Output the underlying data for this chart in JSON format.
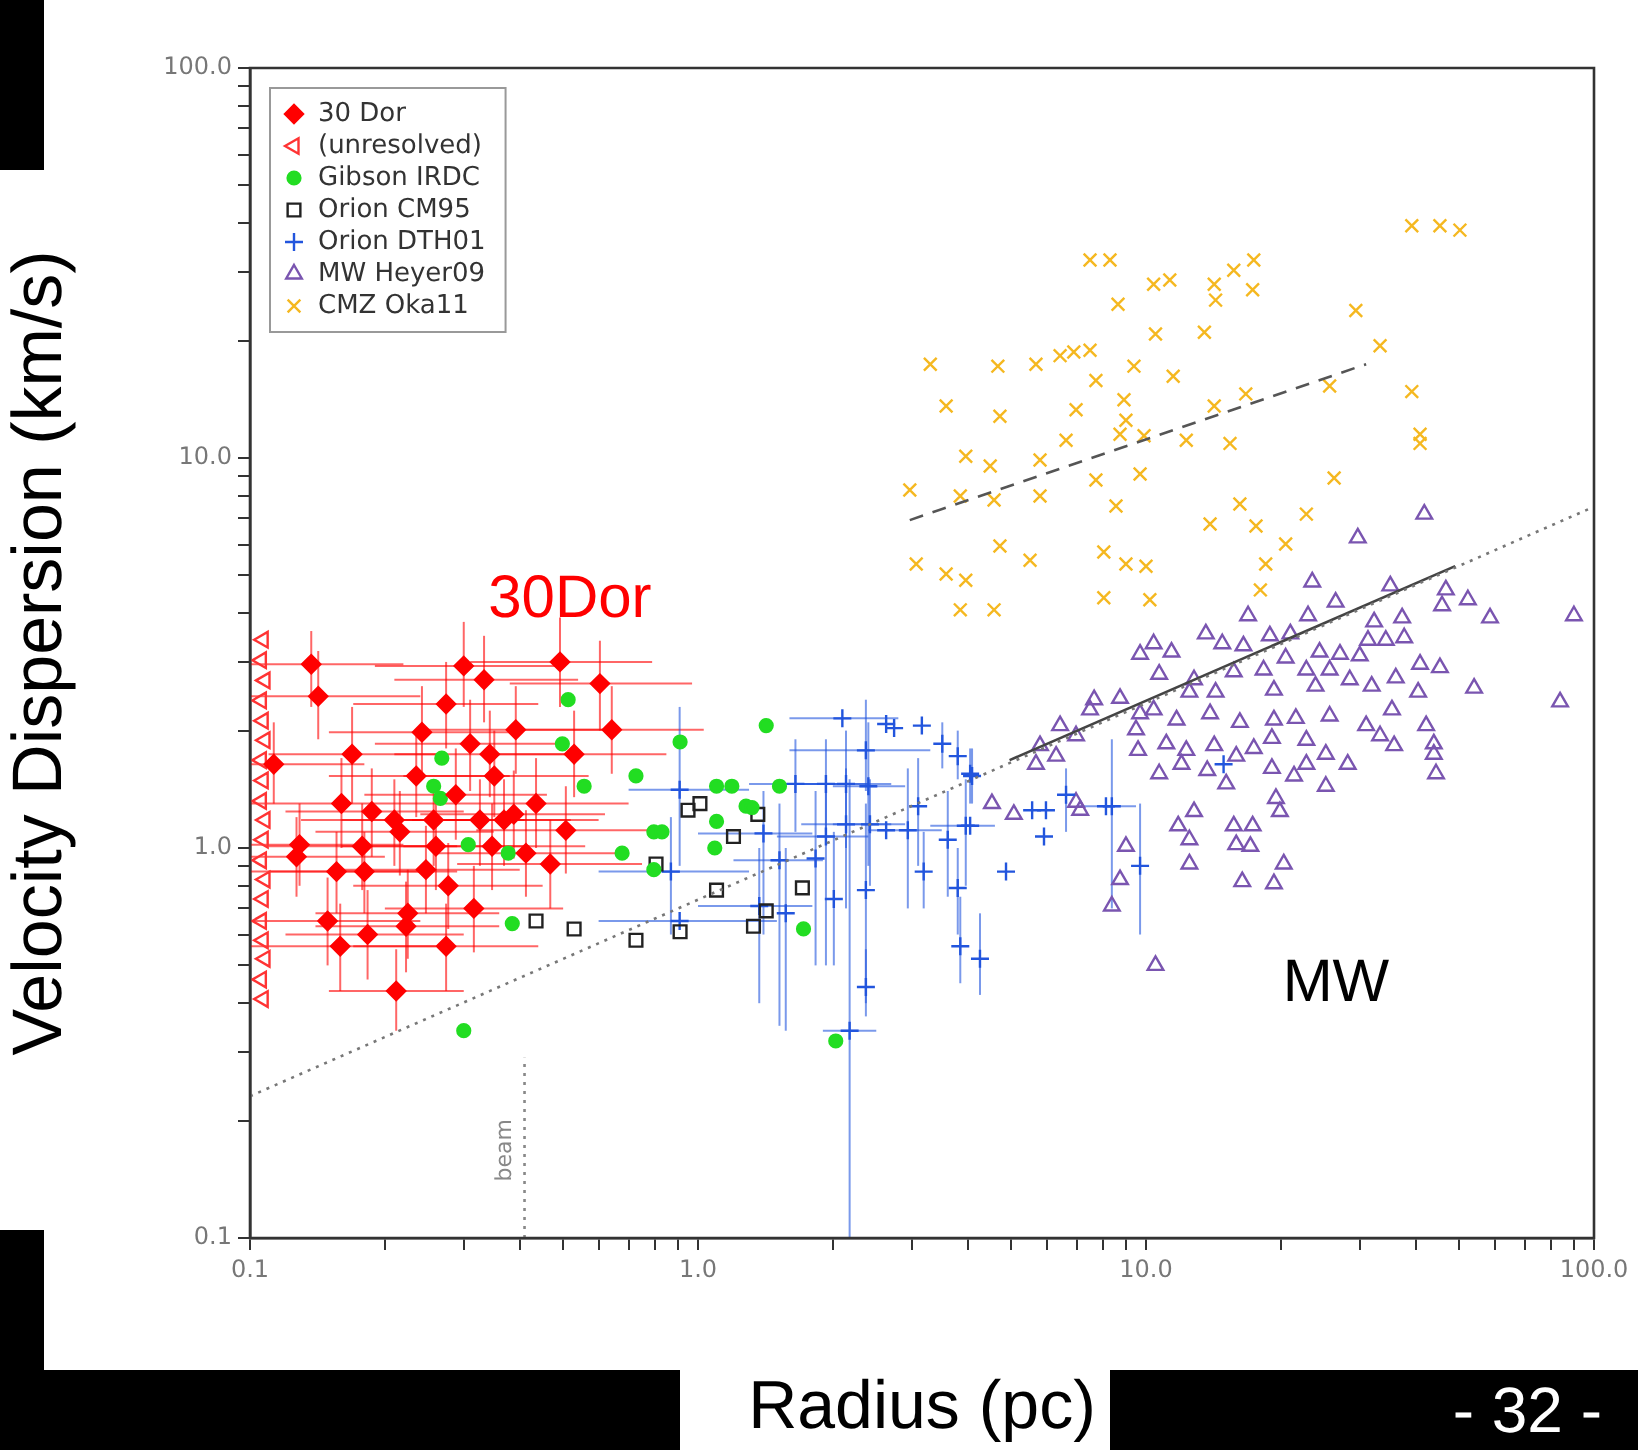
{
  "chart_data": {
    "type": "scatter",
    "xlabel": "Radius (pc)",
    "ylabel": "Velocity Dispersion (km/s)",
    "log": "xy",
    "grid": false,
    "legend": "top left",
    "xlim": [
      0.1,
      100
    ],
    "ylim": [
      0.1,
      100
    ],
    "xticks": [
      0.1,
      {
        "value": 0.2,
        "label": null
      },
      {
        "value": 0.3,
        "label": null
      },
      {
        "value": 0.4,
        "label": null
      },
      {
        "value": 0.5,
        "label": null
      },
      {
        "value": 0.6,
        "label": null
      },
      {
        "value": 0.7,
        "label": null
      },
      {
        "value": 0.8,
        "label": null
      },
      {
        "value": 0.9,
        "label": null
      },
      {
        "value": 1,
        "label": "1.0"
      },
      {
        "value": 2,
        "label": null
      },
      {
        "value": 3,
        "label": null
      },
      {
        "value": 4,
        "label": null
      },
      {
        "value": 5,
        "label": null
      },
      {
        "value": 6,
        "label": null
      },
      {
        "value": 7,
        "label": null
      },
      {
        "value": 8,
        "label": null
      },
      {
        "value": 9,
        "label": null
      },
      {
        "value": 10,
        "label": "10.0"
      },
      {
        "value": 20,
        "label": null
      },
      {
        "value": 30,
        "label": null
      },
      {
        "value": 40,
        "label": null
      },
      {
        "value": 50,
        "label": null
      },
      {
        "value": 60,
        "label": null
      },
      {
        "value": 70,
        "label": null
      },
      {
        "value": 80,
        "label": null
      },
      {
        "value": 90,
        "label": null
      },
      {
        "value": 100,
        "label": "100.0"
      }
    ],
    "yticks": [
      0.1,
      {
        "value": 0.2,
        "label": null
      },
      {
        "value": 0.3,
        "label": null
      },
      {
        "value": 0.4,
        "label": null
      },
      {
        "value": 0.5,
        "label": null
      },
      {
        "value": 0.6,
        "label": null
      },
      {
        "value": 0.7,
        "label": null
      },
      {
        "value": 0.8,
        "label": null
      },
      {
        "value": 0.9,
        "label": null
      },
      {
        "value": 1,
        "label": "1.0"
      },
      {
        "value": 2,
        "label": null
      },
      {
        "value": 3,
        "label": null
      },
      {
        "value": 4,
        "label": null
      },
      {
        "value": 5,
        "label": null
      },
      {
        "value": 6,
        "label": null
      },
      {
        "value": 7,
        "label": null
      },
      {
        "value": 8,
        "label": null
      },
      {
        "value": 9,
        "label": null
      },
      {
        "value": 10,
        "label": "10.0"
      },
      {
        "value": 20,
        "label": null
      },
      {
        "value": 30,
        "label": null
      },
      {
        "value": 40,
        "label": null
      },
      {
        "value": 50,
        "label": null
      },
      {
        "value": 60,
        "label": null
      },
      {
        "value": 70,
        "label": null
      },
      {
        "value": 80,
        "label": null
      },
      {
        "value": 90,
        "label": null
      },
      {
        "value": 100,
        "label": "100.0"
      }
    ],
    "annotations": [
      "30Dor",
      "MW",
      "beam",
      "- 32 -"
    ],
    "series": [
      {
        "type": "line",
        "color": "#777777",
        "line_style": "dotted",
        "marker": "none",
        "x": [
          0.1,
          100
        ],
        "values": [
          0.231,
          7.5
        ]
      },
      {
        "type": "line",
        "color": "#444444",
        "line_style": "solid",
        "marker": "none",
        "x": [
          4.96,
          49
        ],
        "values": [
          1.68,
          5.28
        ]
      },
      {
        "type": "line",
        "color": "#555555",
        "line_style": "dashed",
        "marker": "none",
        "x": [
          2.97,
          31
        ],
        "values": [
          6.93,
          17.4
        ]
      },
      {
        "type": "line",
        "color": "#888888",
        "line_style": "dotted",
        "marker": "none",
        "x": [
          0.41,
          0.41
        ],
        "values": [
          0.1,
          0.29
        ]
      },
      {
        "name": "30 Dor",
        "marker": "diamond",
        "color": "#ff0000",
        "x": [
          0.137,
          0.142,
          0.113,
          0.169,
          0.129,
          0.127,
          0.16,
          0.187,
          0.21,
          0.216,
          0.178,
          0.156,
          0.18,
          0.149,
          0.159,
          0.183,
          0.212,
          0.225,
          0.223,
          0.274,
          0.277,
          0.316,
          0.247,
          0.26,
          0.242,
          0.235,
          0.274,
          0.3,
          0.333,
          0.31,
          0.343,
          0.392,
          0.351,
          0.288,
          0.257,
          0.326,
          0.369,
          0.347,
          0.388,
          0.413,
          0.435,
          0.468,
          0.507,
          0.529,
          0.492,
          0.604,
          0.642
        ],
        "values": [
          2.96,
          2.45,
          1.64,
          1.74,
          1.02,
          0.95,
          1.3,
          1.24,
          1.18,
          1.1,
          1.01,
          0.87,
          0.87,
          0.65,
          0.56,
          0.6,
          0.43,
          0.68,
          0.63,
          0.56,
          0.8,
          0.7,
          0.88,
          1.01,
          1.98,
          1.53,
          2.34,
          2.93,
          2.7,
          1.85,
          1.74,
          2.01,
          1.53,
          1.37,
          1.18,
          1.18,
          1.18,
          1.01,
          1.22,
          0.97,
          1.3,
          0.91,
          1.11,
          1.74,
          3.0,
          2.64,
          2.01
        ],
        "xerrors": [
          [
            0.1,
            0.22
          ],
          [
            0.1,
            0.24
          ],
          [
            0.1,
            0.18
          ],
          [
            0.11,
            0.27
          ],
          [
            0.1,
            0.22
          ],
          [
            0.1,
            0.2
          ],
          [
            0.1,
            0.26
          ],
          [
            0.12,
            0.3
          ],
          [
            0.13,
            0.34
          ],
          [
            0.14,
            0.35
          ],
          [
            0.11,
            0.29
          ],
          [
            0.1,
            0.25
          ],
          [
            0.11,
            0.29
          ],
          [
            0.1,
            0.24
          ],
          [
            0.1,
            0.26
          ],
          [
            0.12,
            0.3
          ],
          [
            0.15,
            0.3
          ],
          [
            0.14,
            0.36
          ],
          [
            0.14,
            0.36
          ],
          [
            0.17,
            0.44
          ],
          [
            0.17,
            0.45
          ],
          [
            0.2,
            0.5
          ],
          [
            0.15,
            0.4
          ],
          [
            0.16,
            0.42
          ],
          [
            0.15,
            0.39
          ],
          [
            0.15,
            0.38
          ],
          [
            0.17,
            0.44
          ],
          [
            0.19,
            0.48
          ],
          [
            0.21,
            0.54
          ],
          [
            0.19,
            0.5
          ],
          [
            0.21,
            0.55
          ],
          [
            0.24,
            0.63
          ],
          [
            0.22,
            0.57
          ],
          [
            0.18,
            0.46
          ],
          [
            0.16,
            0.41
          ],
          [
            0.2,
            0.52
          ],
          [
            0.23,
            0.6
          ],
          [
            0.22,
            0.56
          ],
          [
            0.24,
            0.62
          ],
          [
            0.26,
            0.66
          ],
          [
            0.27,
            0.7
          ],
          [
            0.29,
            0.75
          ],
          [
            0.32,
            0.82
          ],
          [
            0.33,
            0.85
          ],
          [
            0.31,
            0.79
          ],
          [
            0.38,
            0.97
          ],
          [
            0.4,
            1.03
          ]
        ],
        "errors": [
          [
            2.3,
            3.6
          ],
          [
            1.9,
            3.2
          ],
          [
            1.3,
            2.1
          ],
          [
            1.3,
            2.3
          ],
          [
            0.8,
            1.3
          ],
          [
            0.75,
            1.2
          ],
          [
            1.0,
            1.7
          ],
          [
            0.95,
            1.6
          ],
          [
            0.9,
            1.5
          ],
          [
            0.85,
            1.4
          ],
          [
            0.78,
            1.3
          ],
          [
            0.68,
            1.1
          ],
          [
            0.68,
            1.1
          ],
          [
            0.5,
            0.84
          ],
          [
            0.43,
            0.72
          ],
          [
            0.46,
            0.78
          ],
          [
            0.34,
            0.55
          ],
          [
            0.52,
            0.88
          ],
          [
            0.48,
            0.82
          ],
          [
            0.43,
            0.72
          ],
          [
            0.62,
            1.03
          ],
          [
            0.54,
            0.9
          ],
          [
            0.68,
            1.14
          ],
          [
            0.78,
            1.3
          ],
          [
            1.5,
            2.6
          ],
          [
            1.2,
            2.0
          ],
          [
            1.8,
            3.0
          ],
          [
            2.3,
            3.8
          ],
          [
            2.1,
            3.5
          ],
          [
            1.4,
            2.4
          ],
          [
            1.35,
            2.25
          ],
          [
            1.55,
            2.6
          ],
          [
            1.2,
            2.0
          ],
          [
            1.05,
            1.8
          ],
          [
            0.9,
            1.5
          ],
          [
            0.9,
            1.5
          ],
          [
            0.9,
            1.5
          ],
          [
            0.78,
            1.3
          ],
          [
            0.94,
            1.58
          ],
          [
            0.75,
            1.25
          ],
          [
            1.0,
            1.7
          ],
          [
            0.7,
            1.18
          ],
          [
            0.86,
            1.44
          ],
          [
            1.35,
            2.25
          ],
          [
            2.3,
            3.9
          ],
          [
            2.0,
            3.4
          ],
          [
            1.55,
            2.6
          ]
        ]
      },
      {
        "name": "(unresolved)",
        "marker": "triangle",
        "color": "#ff3333",
        "x": [
          0.107,
          0.106,
          0.108,
          0.106,
          0.107,
          0.108,
          0.106,
          0.107,
          0.106,
          0.108,
          0.107,
          0.106,
          0.108,
          0.107,
          0.106,
          0.107,
          0.108,
          0.106,
          0.107
        ],
        "values": [
          3.42,
          3.03,
          2.69,
          2.39,
          2.12,
          1.89,
          1.68,
          1.49,
          1.32,
          1.18,
          1.05,
          0.93,
          0.83,
          0.74,
          0.65,
          0.58,
          0.52,
          0.46,
          0.41
        ]
      },
      {
        "name": "Gibson IRDC",
        "marker": "circle",
        "color": "#22dd22",
        "x": [
          0.513,
          0.498,
          0.557,
          0.268,
          0.257,
          0.266,
          0.307,
          0.377,
          0.727,
          0.912,
          0.677,
          0.797,
          0.831,
          0.797,
          0.385,
          0.3,
          1.1,
          1.19,
          1.09,
          1.28,
          1.42,
          1.52,
          1.32,
          1.1,
          1.72,
          2.03
        ],
        "values": [
          2.4,
          1.85,
          1.44,
          1.7,
          1.44,
          1.34,
          1.02,
          0.97,
          1.53,
          1.87,
          0.97,
          1.1,
          1.1,
          0.88,
          0.64,
          0.34,
          1.44,
          1.44,
          1.0,
          1.28,
          2.06,
          1.44,
          1.27,
          1.17,
          0.62,
          0.32
        ]
      },
      {
        "name": "Orion CM95",
        "marker": "square",
        "color": "#222222",
        "x": [
          0.435,
          0.529,
          0.727,
          0.912,
          0.806,
          0.95,
          1.01,
          1.2,
          1.36,
          1.1,
          1.71,
          1.42,
          1.33
        ],
        "values": [
          0.65,
          0.62,
          0.58,
          0.61,
          0.91,
          1.25,
          1.3,
          1.07,
          1.22,
          0.78,
          0.79,
          0.69,
          0.63
        ]
      },
      {
        "name": "Orion DTH01",
        "marker": "cross",
        "color": "#2255dd",
        "x": [
          2.1,
          2.63,
          2.74,
          3.16,
          3.51,
          3.8,
          4.09,
          2.37,
          1.65,
          1.93,
          2.14,
          2.4,
          3.1,
          2.94,
          3.61,
          3.96,
          3.8,
          3.19,
          4.87,
          3.85,
          4.26,
          2.37,
          2.18,
          2.37,
          1.93,
          2.14,
          2.42,
          2.63,
          1.52,
          1.4,
          1.57,
          0.91,
          0.87,
          0.91,
          1.37,
          1.83,
          2.01,
          5.98,
          6.63,
          8.14,
          5.92,
          4.05,
          4.05,
          5.57,
          8.39,
          9.7,
          14.9
        ],
        "values": [
          2.15,
          2.08,
          2.03,
          2.06,
          1.85,
          1.72,
          1.53,
          1.78,
          1.46,
          1.46,
          1.46,
          1.44,
          1.28,
          1.11,
          1.05,
          1.14,
          0.79,
          0.87,
          0.87,
          0.56,
          0.52,
          0.44,
          0.34,
          0.78,
          1.07,
          1.15,
          1.15,
          1.11,
          0.93,
          1.09,
          0.68,
          1.41,
          0.87,
          0.65,
          0.71,
          0.94,
          0.74,
          1.25,
          1.37,
          1.28,
          1.07,
          1.55,
          1.14,
          1.25,
          1.28,
          0.9,
          1.64
        ],
        "xerrors": [
          [
            1.6,
            2.8
          ],
          null,
          null,
          null,
          null,
          null,
          null,
          [
            1.6,
            3.3
          ],
          [
            1.3,
            2.1
          ],
          [
            1.5,
            2.4
          ],
          [
            1.7,
            2.7
          ],
          [
            2.0,
            2.9
          ],
          null,
          [
            2.4,
            3.5
          ],
          null,
          [
            3.3,
            4.6
          ],
          null,
          null,
          null,
          null,
          null,
          null,
          [
            1.9,
            2.5
          ],
          null,
          [
            1.5,
            2.4
          ],
          [
            1.7,
            2.7
          ],
          [
            2.0,
            2.9
          ],
          null,
          [
            1.2,
            1.9
          ],
          [
            1.0,
            1.8
          ],
          null,
          [
            0.7,
            1.3
          ],
          [
            0.6,
            1.3
          ],
          [
            0.6,
            1.5
          ],
          [
            1.0,
            1.8
          ],
          null,
          null,
          null,
          null,
          [
            7.0,
            9.5
          ],
          null,
          null,
          null,
          null,
          null,
          null,
          null
        ],
        "errors": [
          null,
          null,
          null,
          null,
          [
            1.6,
            2.1
          ],
          [
            1.5,
            2.0
          ],
          [
            1.3,
            1.8
          ],
          [
            1.4,
            2.4
          ],
          [
            1.1,
            1.9
          ],
          [
            1.1,
            1.9
          ],
          [
            1.0,
            2.0
          ],
          [
            0.9,
            2.1
          ],
          [
            0.9,
            1.7
          ],
          [
            0.7,
            1.6
          ],
          [
            0.75,
            1.4
          ],
          [
            0.8,
            1.5
          ],
          [
            0.6,
            1.0
          ],
          [
            0.7,
            1.1
          ],
          null,
          [
            0.45,
            0.75
          ],
          [
            0.42,
            0.68
          ],
          [
            0.37,
            0.55
          ],
          [
            0.1,
            1.5
          ],
          [
            0.4,
            1.3
          ],
          [
            0.5,
            1.5
          ],
          [
            0.7,
            1.6
          ],
          [
            0.8,
            1.5
          ],
          null,
          [
            0.35,
            1.3
          ],
          [
            0.6,
            1.4
          ],
          [
            0.34,
            1.0
          ],
          [
            0.9,
            2.3
          ],
          [
            0.6,
            1.2
          ],
          null,
          [
            0.4,
            1.0
          ],
          [
            0.5,
            1.4
          ],
          [
            0.5,
            1.1
          ],
          null,
          [
            1.1,
            1.6
          ],
          null,
          null,
          [
            1.3,
            1.8
          ],
          null,
          null,
          [
            0.7,
            1.9
          ],
          [
            0.6,
            1.3
          ],
          null
        ]
      },
      {
        "name": "MW Heyer09",
        "marker": "triangle",
        "color": "#7a55b0",
        "x": [
          41.8,
          29.7,
          23.5,
          35.1,
          46.7,
          52.3,
          45.8,
          58.6,
          90.2,
          16.9,
          26.5,
          23.0,
          32.3,
          37.3,
          13.6,
          14.8,
          16.5,
          18.9,
          21.0,
          9.7,
          10.4,
          11.4,
          24.4,
          27.1,
          31.3,
          34.3,
          37.7,
          40.9,
          45.3,
          30.0,
          10.7,
          12.8,
          15.7,
          18.3,
          20.5,
          22.8,
          25.7,
          28.5,
          31.9,
          36.1,
          40.5,
          54.0,
          84.0,
          12.5,
          14.3,
          19.3,
          23.9,
          7.66,
          8.75,
          7.5,
          6.43,
          6.98,
          5.8,
          6.3,
          5.68,
          9.7,
          10.4,
          9.5,
          11.7,
          13.9,
          16.2,
          19.3,
          21.6,
          25.7,
          31.0,
          35.4,
          42.2,
          43.9,
          43.9,
          44.4,
          35.8,
          33.3,
          28.2,
          25.2,
          22.8,
          19.1,
          17.4,
          15.9,
          14.2,
          12.3,
          11.1,
          9.6,
          10.7,
          12.0,
          13.7,
          15.1,
          19.1,
          22.8,
          21.4,
          25.2,
          19.5,
          19.9,
          12.8,
          11.8,
          12.5,
          12.5,
          15.7,
          17.3,
          15.9,
          17.1,
          20.3,
          16.4,
          19.3,
          9.02,
          8.75,
          8.39,
          6.98,
          5.07,
          4.53,
          10.5,
          7.13
        ],
        "values": [
          7.18,
          6.24,
          4.81,
          4.7,
          4.59,
          4.33,
          4.18,
          3.89,
          3.94,
          3.94,
          4.27,
          3.94,
          3.8,
          3.89,
          3.54,
          3.34,
          3.3,
          3.5,
          3.54,
          3.14,
          3.34,
          3.18,
          3.18,
          3.14,
          3.41,
          3.41,
          3.46,
          2.96,
          2.9,
          3.11,
          2.79,
          2.7,
          2.83,
          2.86,
          3.07,
          2.86,
          2.86,
          2.7,
          2.6,
          2.73,
          2.51,
          2.57,
          2.37,
          2.51,
          2.51,
          2.54,
          2.6,
          2.4,
          2.42,
          2.26,
          2.06,
          1.94,
          1.83,
          1.72,
          1.64,
          2.21,
          2.26,
          2.01,
          2.13,
          2.21,
          2.1,
          2.13,
          2.15,
          2.18,
          2.06,
          2.26,
          2.06,
          1.85,
          1.74,
          1.55,
          1.83,
          1.94,
          1.64,
          1.74,
          1.89,
          1.91,
          1.8,
          1.72,
          1.83,
          1.78,
          1.85,
          1.78,
          1.55,
          1.64,
          1.58,
          1.46,
          1.6,
          1.64,
          1.53,
          1.44,
          1.34,
          1.24,
          1.24,
          1.14,
          1.05,
          0.91,
          1.14,
          1.14,
          1.02,
          1.01,
          0.91,
          0.82,
          0.81,
          1.01,
          0.83,
          0.71,
          1.31,
          1.22,
          1.3,
          0.5,
          1.25
        ]
      },
      {
        "name": "CMZ Oka11",
        "marker": "cross",
        "color": "#f5b820",
        "x": [
          39.2,
          45.3,
          50.2,
          7.5,
          8.31,
          10.4,
          11.3,
          14.2,
          15.7,
          17.4,
          14.3,
          17.3,
          8.66,
          29.4,
          3.3,
          4.67,
          5.68,
          6.43,
          6.9,
          7.5,
          10.5,
          13.5,
          33.3,
          7.73,
          9.4,
          11.5,
          3.58,
          4.72,
          6.98,
          8.93,
          9.02,
          8.75,
          16.7,
          14.2,
          25.7,
          39.2,
          40.9,
          40.9,
          3.96,
          4.49,
          5.8,
          6.63,
          9.9,
          12.3,
          15.4,
          2.97,
          3.85,
          4.58,
          5.8,
          7.73,
          9.7,
          26.3,
          8.57,
          16.2,
          3.07,
          3.58,
          3.96,
          4.72,
          5.51,
          8.05,
          9.02,
          10.0,
          13.9,
          17.6,
          22.8,
          20.5,
          18.5,
          8.05,
          10.2,
          4.58,
          3.85,
          18.0
        ],
        "values": [
          39.4,
          39.4,
          38.4,
          32.2,
          32.2,
          27.9,
          28.6,
          27.9,
          30.3,
          32.2,
          25.4,
          27.0,
          24.8,
          23.9,
          17.4,
          17.2,
          17.4,
          18.3,
          18.7,
          18.9,
          20.8,
          21.0,
          19.4,
          15.8,
          17.2,
          16.2,
          13.6,
          12.8,
          13.3,
          14.1,
          12.5,
          11.5,
          14.6,
          13.6,
          15.3,
          14.8,
          11.5,
          10.9,
          10.1,
          9.54,
          9.88,
          11.1,
          11.4,
          11.1,
          10.9,
          8.28,
          7.99,
          7.8,
          7.99,
          8.78,
          9.1,
          8.89,
          7.53,
          7.62,
          5.35,
          5.04,
          4.86,
          5.95,
          5.47,
          5.74,
          5.35,
          5.28,
          6.77,
          6.69,
          7.18,
          6.02,
          5.35,
          4.38,
          4.33,
          4.08,
          4.08,
          4.59
        ]
      }
    ]
  }
}
